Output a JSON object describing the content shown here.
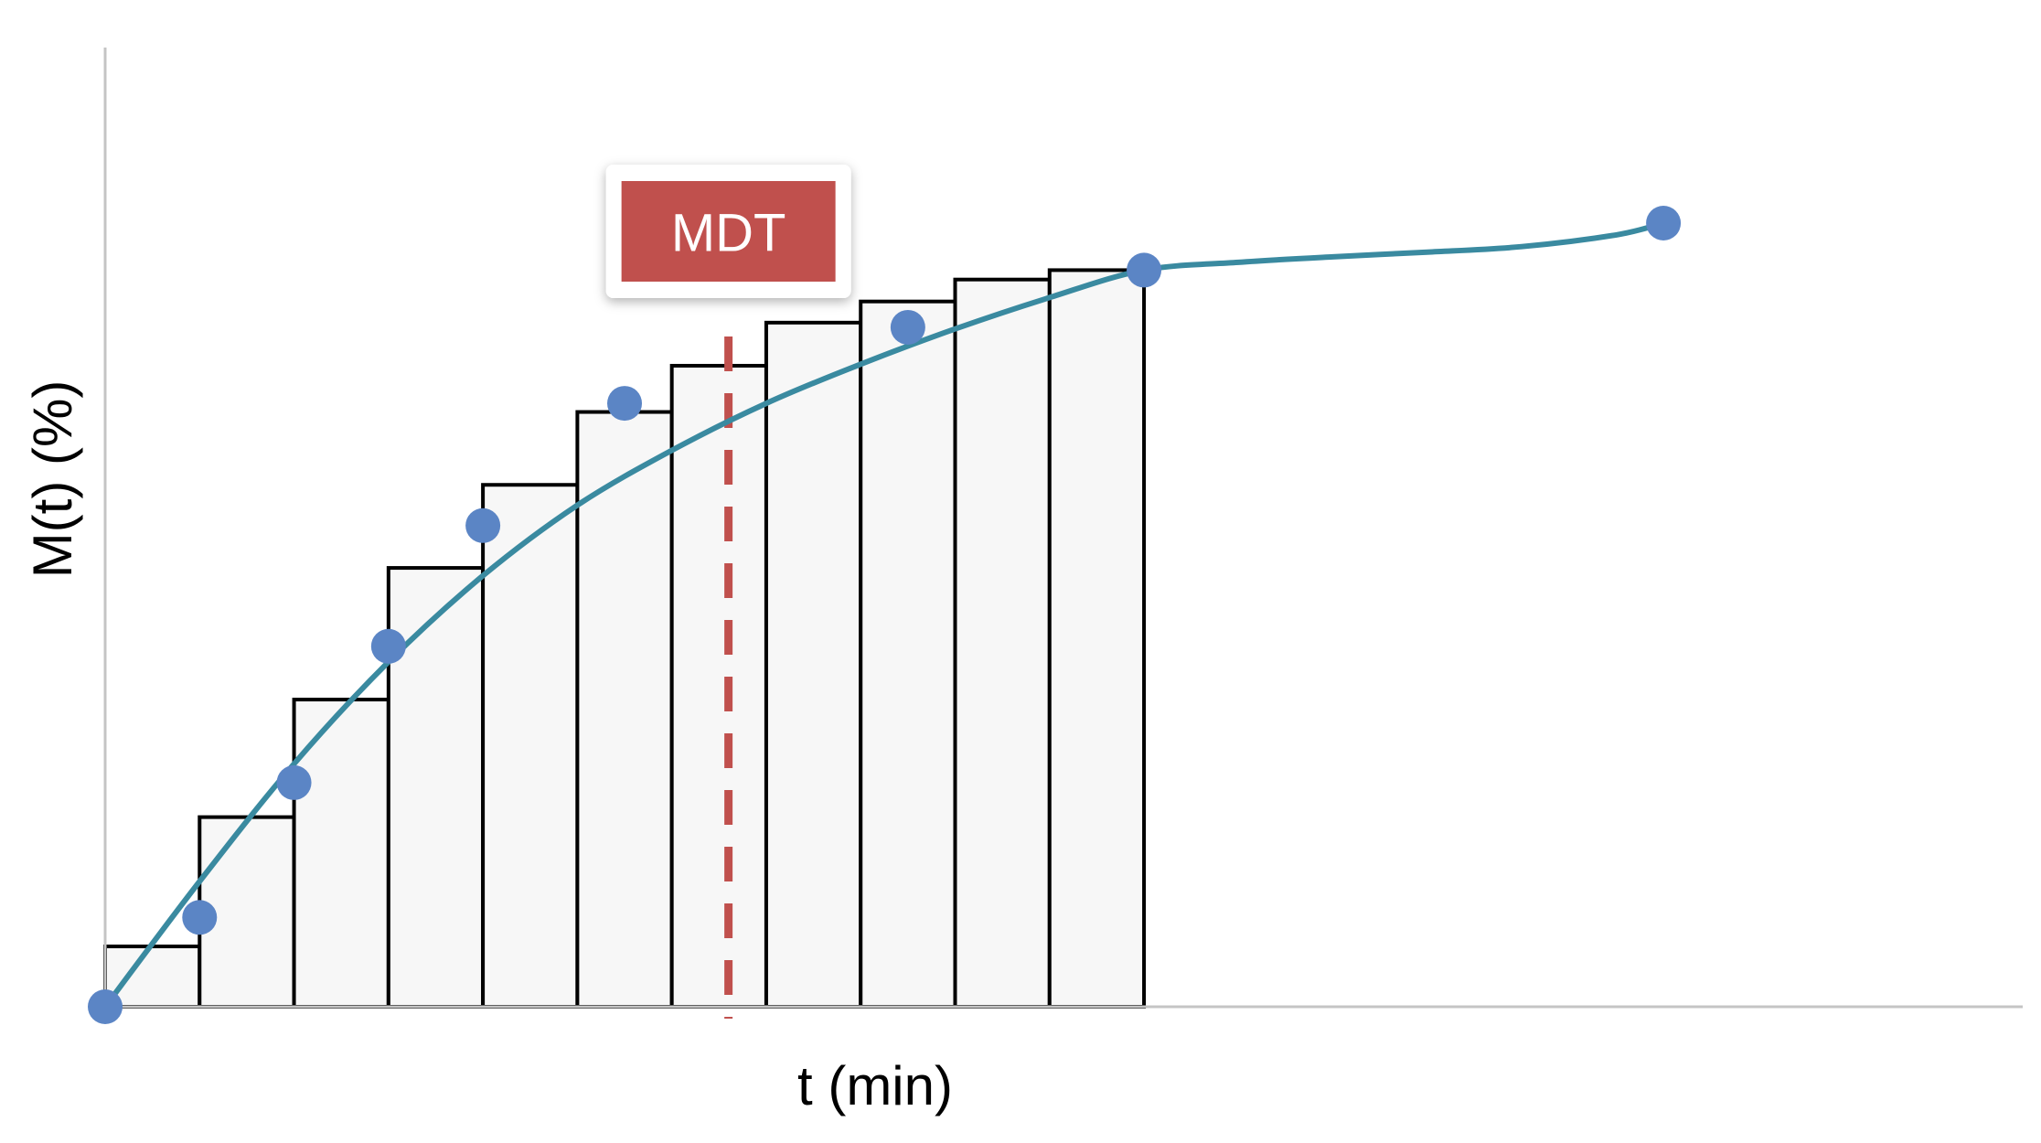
{
  "chart_data": {
    "type": "line",
    "title": "",
    "xlabel": "t (min)",
    "ylabel": "M(t) (%)",
    "xlim": [
      0,
      18.3
    ],
    "ylim": [
      0,
      100
    ],
    "grid": false,
    "legend": "none",
    "series": [
      {
        "kind": "scatter",
        "x": [
          0,
          1,
          2,
          3,
          4,
          5.5,
          8.5,
          11,
          16.5
        ],
        "y": [
          0,
          11.4,
          28.6,
          46,
          61.4,
          77,
          86.7,
          94,
          100
        ]
      }
    ],
    "fitted_curve": {
      "x": [
        0,
        1,
        2,
        3,
        4,
        5,
        6,
        7,
        8,
        9,
        10,
        11,
        12,
        13,
        14,
        15,
        16,
        16.5
      ],
      "y": [
        0,
        16,
        31,
        44,
        55,
        64,
        71,
        77,
        82,
        86.5,
        90.5,
        94,
        95,
        95.7,
        96.3,
        97,
        98.5,
        100
      ]
    },
    "bars": {
      "edges": [
        0,
        1,
        2,
        3,
        4,
        5,
        6,
        7,
        8,
        9,
        10,
        11
      ],
      "heights": [
        7.7,
        24.2,
        39.2,
        56,
        66.6,
        75.9,
        81.8,
        87.3,
        90,
        92.8,
        94
      ]
    },
    "annotations": [
      {
        "type": "vline",
        "x": 6.6,
        "label": "MDT"
      }
    ]
  },
  "colors": {
    "points": "#5b85c5",
    "curve": "#3a8aa0",
    "bar_fill": "#f7f7f7",
    "bar_stroke": "#000000",
    "axis": "#c4c4c4",
    "mdt": "#c0504d"
  }
}
